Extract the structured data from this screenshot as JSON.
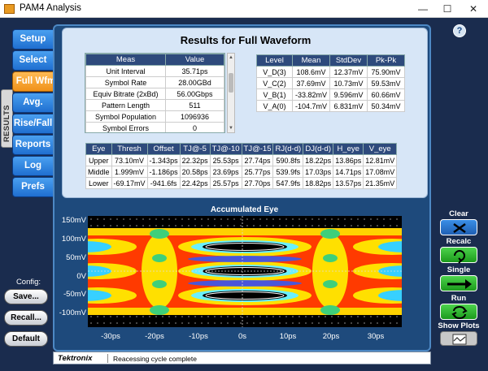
{
  "window": {
    "title": "PAM4 Analysis",
    "minimize": "—",
    "maximize": "☐",
    "close": "✕"
  },
  "sidebar": {
    "results_tab": "RESULTS",
    "items": [
      {
        "label": "Setup"
      },
      {
        "label": "Select"
      },
      {
        "label": "Full Wfm",
        "active": true
      },
      {
        "label": "Avg. Wfm"
      },
      {
        "label": "Rise/Fall"
      },
      {
        "label": "Reports"
      },
      {
        "label": "Log"
      },
      {
        "label": "Prefs"
      }
    ],
    "config_label": "Config:",
    "config_buttons": {
      "save": "Save...",
      "recall": "Recall...",
      "default": "Default"
    }
  },
  "results": {
    "title": "Results for Full Waveform",
    "meas_table": {
      "headers": [
        "Meas",
        "Value"
      ],
      "rows": [
        [
          "Unit Interval",
          "35.71ps"
        ],
        [
          "Symbol Rate",
          "28.00GBd"
        ],
        [
          "Equiv Bitrate (2xBd)",
          "56.00Gbps"
        ],
        [
          "Pattern Length",
          "511"
        ],
        [
          "Symbol Population",
          "1096936"
        ],
        [
          "Symbol Errors",
          "0"
        ]
      ]
    },
    "level_table": {
      "headers": [
        "Level",
        "Mean",
        "StdDev",
        "Pk-Pk"
      ],
      "rows": [
        [
          "V_D(3)",
          "108.6mV",
          "12.37mV",
          "75.90mV"
        ],
        [
          "V_C(2)",
          "37.69mV",
          "10.73mV",
          "59.53mV"
        ],
        [
          "V_B(1)",
          "-33.82mV",
          "9.596mV",
          "60.66mV"
        ],
        [
          "V_A(0)",
          "-104.7mV",
          "6.831mV",
          "50.34mV"
        ]
      ]
    },
    "eye_table": {
      "headers": [
        "Eye",
        "Thresh",
        "Offset",
        "TJ@-5",
        "TJ@-10",
        "TJ@-15",
        "RJ(d-d)",
        "DJ(d-d)",
        "H_eye",
        "V_eye"
      ],
      "rows": [
        [
          "Upper",
          "73.10mV",
          "-1.343ps",
          "22.32ps",
          "25.53ps",
          "27.74ps",
          "590.8fs",
          "18.22ps",
          "13.86ps",
          "12.81mV"
        ],
        [
          "Middle",
          "1.999mV",
          "-1.186ps",
          "20.58ps",
          "23.69ps",
          "25.77ps",
          "539.9fs",
          "17.03ps",
          "14.71ps",
          "17.08mV"
        ],
        [
          "Lower",
          "-69.17mV",
          "-941.6fs",
          "22.42ps",
          "25.57ps",
          "27.70ps",
          "547.9fs",
          "18.82ps",
          "13.57ps",
          "21.35mV"
        ]
      ]
    }
  },
  "eye_plot": {
    "title": "Accumulated Eye",
    "y_labels": [
      "150mV",
      "100mV",
      "50mV",
      "0V",
      "-50mV",
      "-100mV"
    ],
    "x_labels": [
      "-30ps",
      "-20ps",
      "-10ps",
      "0s",
      "10ps",
      "20ps",
      "30ps"
    ]
  },
  "actions": {
    "help": "?",
    "clear": "Clear",
    "recalc": "Recalc",
    "single": "Single",
    "run": "Run",
    "show_plots": "Show Plots"
  },
  "status": {
    "brand": "Tektronix",
    "message": "Reacessing cycle complete"
  }
}
